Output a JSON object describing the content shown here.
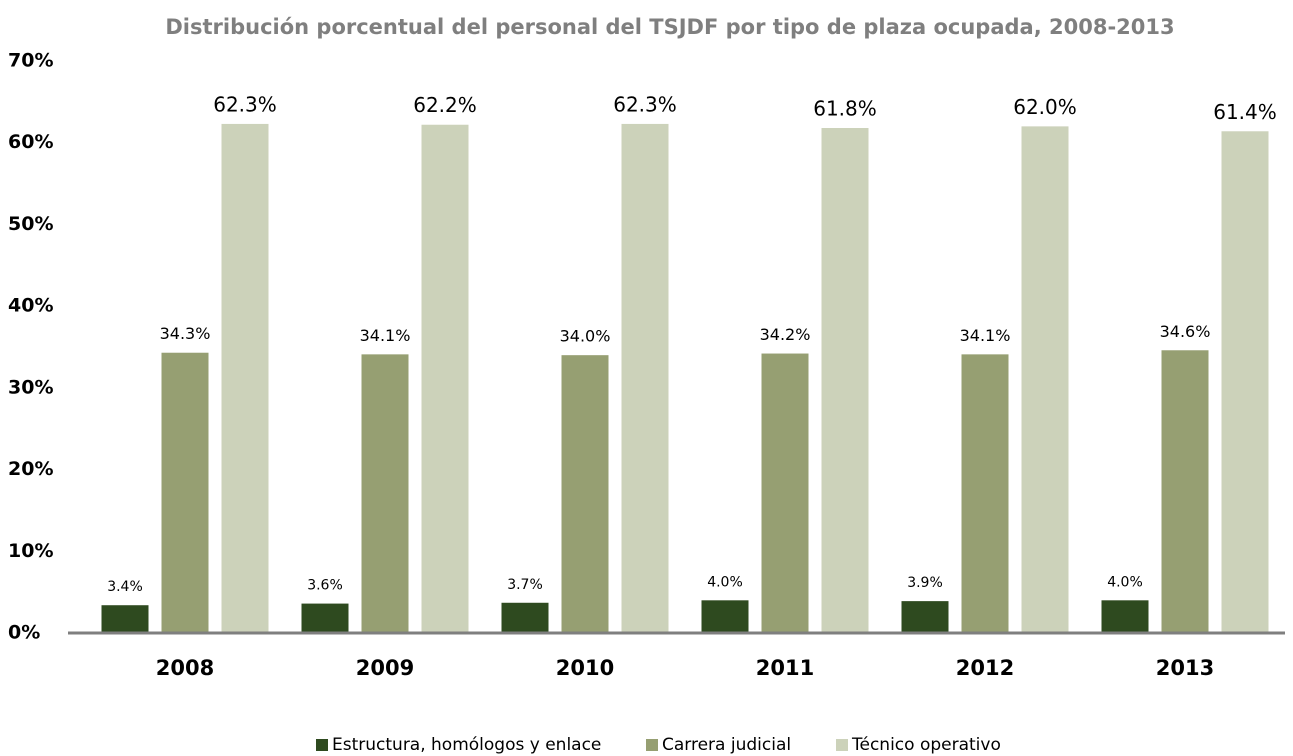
{
  "chart_data": {
    "type": "bar",
    "title": "Distribución porcentual del personal del TSJDF por tipo de plaza ocupada, 2008-2013",
    "categories": [
      "2008",
      "2009",
      "2010",
      "2011",
      "2012",
      "2013"
    ],
    "series": [
      {
        "name": "Estructura, homólogos y enlace",
        "color": "#2e4a1f",
        "values": [
          3.4,
          3.6,
          3.7,
          4.0,
          3.9,
          4.0
        ],
        "value_labels": [
          "3.4%",
          "3.6%",
          "3.7%",
          "4.0%",
          "3.9%",
          "4.0%"
        ]
      },
      {
        "name": "Carrera judicial",
        "color": "#969f72",
        "values": [
          34.3,
          34.1,
          34.0,
          34.2,
          34.1,
          34.6
        ],
        "value_labels": [
          "34.3%",
          "34.1%",
          "34.0%",
          "34.2%",
          "34.1%",
          "34.6%"
        ]
      },
      {
        "name": "Técnico operativo",
        "color": "#ccd2ba",
        "values": [
          62.3,
          62.2,
          62.3,
          61.8,
          62.0,
          61.4
        ],
        "value_labels": [
          "62.3%",
          "62.2%",
          "62.3%",
          "61.8%",
          "62.0%",
          "61.4%"
        ]
      }
    ],
    "ylim": [
      0,
      70
    ],
    "yticks": [
      {
        "value": 0,
        "label": "0%"
      },
      {
        "value": 10,
        "label": "10%"
      },
      {
        "value": 20,
        "label": "20%"
      },
      {
        "value": 30,
        "label": "30%"
      },
      {
        "value": 40,
        "label": "40%"
      },
      {
        "value": 50,
        "label": "50%"
      },
      {
        "value": 60,
        "label": "60%"
      },
      {
        "value": 70,
        "label": "70%"
      }
    ],
    "grid": false,
    "legend": "bottom"
  }
}
